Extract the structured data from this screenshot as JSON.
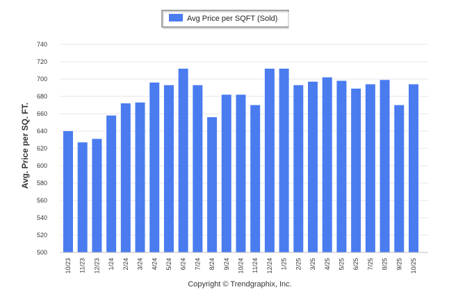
{
  "chart_data": {
    "type": "bar",
    "title": "",
    "xlabel": "",
    "ylabel": "Avg. Price per SQ. FT.",
    "ylim": [
      500,
      740
    ],
    "yticks": [
      500,
      520,
      540,
      560,
      580,
      600,
      620,
      640,
      660,
      680,
      700,
      720,
      740
    ],
    "grid": true,
    "legend": {
      "placement": "top-center",
      "entries": [
        "Avg Price per SQFT (Sold)"
      ]
    },
    "categories": [
      "10/23",
      "11/23",
      "12/23",
      "1/24",
      "2/24",
      "3/24",
      "4/24",
      "5/24",
      "6/24",
      "7/24",
      "8/24",
      "9/24",
      "10/24",
      "11/24",
      "12/24",
      "1/25",
      "2/25",
      "3/25",
      "4/25",
      "5/25",
      "6/25",
      "7/25",
      "8/25",
      "9/25",
      "10/25"
    ],
    "series": [
      {
        "name": "Avg Price per SQFT (Sold)",
        "color": "#4a7cf0",
        "values": [
          640,
          627,
          631,
          658,
          672,
          673,
          696,
          693,
          712,
          693,
          656,
          682,
          682,
          670,
          712,
          712,
          693,
          697,
          702,
          698,
          689,
          694,
          699,
          670,
          694
        ]
      }
    ]
  },
  "footer": {
    "copyright": "Copyright © Trendgraphix, Inc."
  },
  "colors": {
    "bar": "#4a7cf0",
    "grid": "#e6e6e6",
    "axis": "#c0c0c0"
  }
}
